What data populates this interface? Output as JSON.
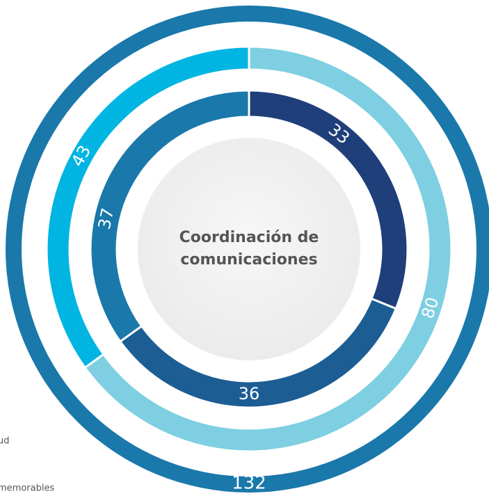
{
  "chart_data": {
    "type": "sunburst",
    "title": "Coordinación de comunicaciones",
    "rings": [
      {
        "values": [
          132
        ],
        "colors": [
          "#1a78aa"
        ]
      },
      {
        "values": [
          80,
          43
        ],
        "colors": [
          "#7ecfe1",
          "#00b5e2"
        ]
      },
      {
        "values": [
          33,
          36,
          37
        ],
        "colors": [
          "#1f3f7a",
          "#1c5d94",
          "#1a78aa"
        ]
      }
    ],
    "legend": [
      "ud",
      "memorables"
    ]
  }
}
